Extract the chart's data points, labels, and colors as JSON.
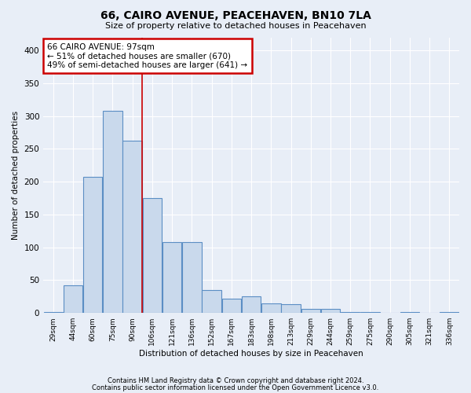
{
  "title": "66, CAIRO AVENUE, PEACEHAVEN, BN10 7LA",
  "subtitle": "Size of property relative to detached houses in Peacehaven",
  "xlabel": "Distribution of detached houses by size in Peacehaven",
  "ylabel": "Number of detached properties",
  "categories": [
    "29sqm",
    "44sqm",
    "60sqm",
    "75sqm",
    "90sqm",
    "106sqm",
    "121sqm",
    "136sqm",
    "152sqm",
    "167sqm",
    "183sqm",
    "198sqm",
    "213sqm",
    "229sqm",
    "244sqm",
    "259sqm",
    "275sqm",
    "290sqm",
    "305sqm",
    "321sqm",
    "336sqm"
  ],
  "values": [
    2,
    42,
    207,
    308,
    263,
    175,
    108,
    108,
    35,
    22,
    25,
    15,
    14,
    6,
    6,
    2,
    2,
    0,
    2,
    0,
    2
  ],
  "bar_color": "#c9d9ec",
  "bar_edge_color": "#5b8ec4",
  "red_line_x": 4.47,
  "annotation_title": "66 CAIRO AVENUE: 97sqm",
  "annotation_line1": "← 51% of detached houses are smaller (670)",
  "annotation_line2": "49% of semi-detached houses are larger (641) →",
  "annotation_box_color": "#ffffff",
  "annotation_box_edge": "#cc0000",
  "red_line_color": "#cc0000",
  "ylim": [
    0,
    420
  ],
  "yticks": [
    0,
    50,
    100,
    150,
    200,
    250,
    300,
    350,
    400
  ],
  "footer1": "Contains HM Land Registry data © Crown copyright and database right 2024.",
  "footer2": "Contains public sector information licensed under the Open Government Licence v3.0.",
  "background_color": "#e8eef7",
  "grid_color": "#ffffff"
}
